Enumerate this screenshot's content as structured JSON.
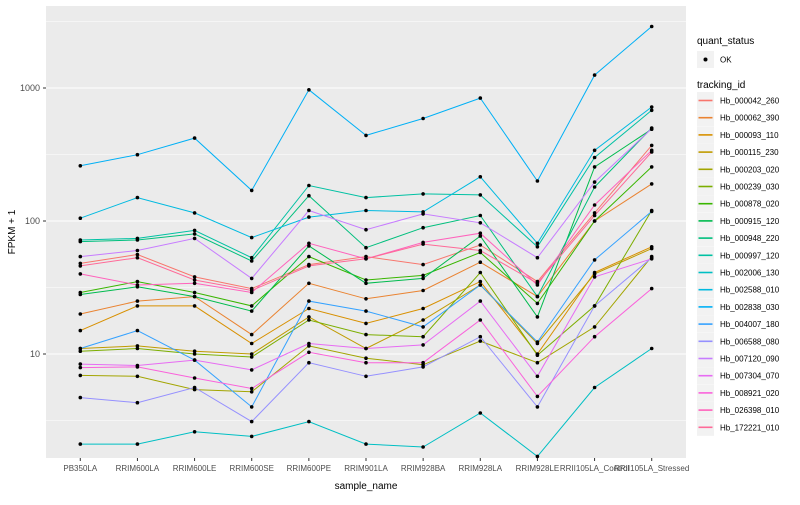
{
  "figure": {
    "bg": "#FFFFFF",
    "panel_bg": "#EBEBEB",
    "grid_color": "#FFFFFF",
    "axis_text_color": "#4D4D4D",
    "title_color": "#000000",
    "point_color": "#000000",
    "legend_key_bg": "#F2F2F2"
  },
  "legend": {
    "quant_status_title": "quant_status",
    "quant_status_entries": [
      {
        "label": "OK",
        "marker": "black-point"
      }
    ],
    "tracking_id_title": "tracking_id"
  },
  "chart_data": {
    "type": "line",
    "title": "",
    "xlabel": "sample_name",
    "ylabel": "FPKM + 1",
    "y_scale": "log10",
    "y_ticks": [
      10,
      100,
      1000
    ],
    "y_minor_ticks": [
      3.162,
      31.62,
      316.2,
      3162
    ],
    "ylim": [
      1.6,
      4200
    ],
    "grid": true,
    "legend_position": "right",
    "point_marker": "black-dot",
    "categories": [
      "PB350LA",
      "RRIM600LA",
      "RRIM600LE",
      "RRIM600SE",
      "RRIM600PE",
      "RRIM901LA",
      "RRIM928BA",
      "RRIM928LA",
      "RRIM928LE",
      "RRII105LA_Control",
      "RRII105LA_Stressed"
    ],
    "series": [
      {
        "name": "Hb_000042_260",
        "color": "#F8766D",
        "values": [
          48,
          56,
          38,
          31,
          47,
          54,
          47,
          66,
          35,
          115,
          370
        ]
      },
      {
        "name": "Hb_000062_390",
        "color": "#EA8331",
        "values": [
          20,
          25,
          27,
          14,
          34,
          26,
          30,
          49,
          27,
          100,
          190
        ]
      },
      {
        "name": "Hb_000093_110",
        "color": "#D89000",
        "values": [
          15,
          23,
          23,
          12,
          22,
          17,
          22,
          35,
          10,
          41,
          64
        ]
      },
      {
        "name": "Hb_000115_230",
        "color": "#C09B00",
        "values": [
          11,
          11.5,
          10.5,
          10,
          19,
          11,
          18,
          33,
          12,
          40,
          62
        ]
      },
      {
        "name": "Hb_000203_020",
        "color": "#A3A500",
        "values": [
          6.9,
          6.8,
          5.4,
          5.2,
          11.5,
          9.3,
          8.3,
          12.5,
          8.6,
          16,
          54
        ]
      },
      {
        "name": "Hb_000239_030",
        "color": "#7CAE00",
        "values": [
          10.5,
          11,
          10,
          9.5,
          18,
          14,
          13.5,
          41,
          9.8,
          23,
          120
        ]
      },
      {
        "name": "Hb_000878_020",
        "color": "#39B600",
        "values": [
          29,
          35,
          29,
          23,
          54,
          36,
          39,
          58,
          24,
          100,
          255
        ]
      },
      {
        "name": "Hb_000915_120",
        "color": "#00BB4E",
        "values": [
          28,
          32,
          27,
          21,
          65,
          34,
          37,
          77,
          19,
          255,
          490
        ]
      },
      {
        "name": "Hb_000948_220",
        "color": "#00BF7D",
        "values": [
          70,
          72,
          80,
          50,
          155,
          63,
          89,
          110,
          27,
          180,
          500
        ]
      },
      {
        "name": "Hb_000997_120",
        "color": "#00C1A3",
        "values": [
          72,
          74,
          85,
          53,
          185,
          150,
          160,
          157,
          64,
          300,
          680
        ]
      },
      {
        "name": "Hb_002006_130",
        "color": "#00BFC4",
        "values": [
          2.1,
          2.1,
          2.6,
          2.4,
          3.1,
          2.1,
          2.0,
          3.6,
          1.7,
          5.6,
          11
        ]
      },
      {
        "name": "Hb_002588_010",
        "color": "#00BAE0",
        "values": [
          105,
          150,
          115,
          75,
          107,
          120,
          117,
          215,
          68,
          340,
          720
        ]
      },
      {
        "name": "Hb_002838_030",
        "color": "#00B0F6",
        "values": [
          260,
          315,
          420,
          170,
          970,
          440,
          590,
          840,
          200,
          1250,
          2900
        ]
      },
      {
        "name": "Hb_004007_180",
        "color": "#35A2FF",
        "values": [
          11,
          15,
          9,
          4,
          25,
          21,
          16,
          33,
          12.3,
          51,
          118
        ]
      },
      {
        "name": "Hb_006588_080",
        "color": "#9590FF",
        "values": [
          4.7,
          4.3,
          5.6,
          3.1,
          8.6,
          6.8,
          8.0,
          13.5,
          4.0,
          23,
          53
        ]
      },
      {
        "name": "Hb_007120_090",
        "color": "#C77CFF",
        "values": [
          54,
          60,
          74,
          37,
          120,
          86,
          113,
          97,
          53,
          196,
          495
        ]
      },
      {
        "name": "Hb_007304_070",
        "color": "#E76BF3",
        "values": [
          8.4,
          8.2,
          9,
          7.6,
          12,
          11,
          11.7,
          25,
          6.8,
          38,
          52
        ]
      },
      {
        "name": "Hb_008921_020",
        "color": "#FA62DB",
        "values": [
          7.9,
          8.0,
          6.6,
          5.5,
          10.3,
          8.6,
          8.6,
          18,
          4.8,
          13.5,
          31
        ]
      },
      {
        "name": "Hb_026398_010",
        "color": "#FF62BC",
        "values": [
          40,
          33,
          34,
          29,
          68,
          52,
          69,
          81,
          33,
          132,
          340
        ]
      },
      {
        "name": "Hb_172221_010",
        "color": "#FF6A98",
        "values": [
          46,
          53,
          36,
          30,
          46,
          52,
          67,
          60,
          34,
          110,
          330
        ]
      }
    ]
  }
}
